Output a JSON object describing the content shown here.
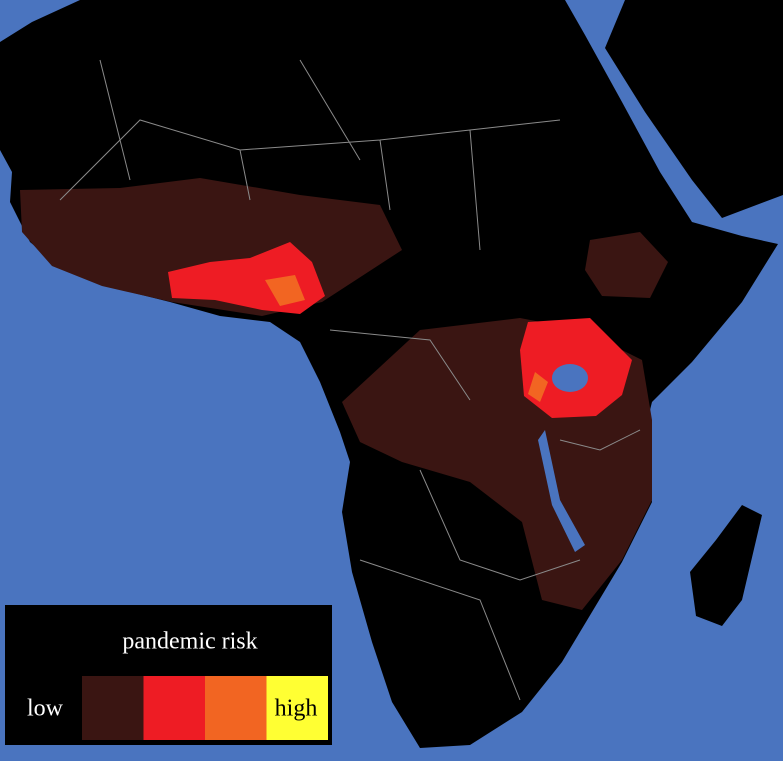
{
  "legend": {
    "title": "pandemic risk",
    "low_label": "low",
    "high_label": "high",
    "colors": [
      "#3a1512",
      "#ee1c24",
      "#f26522",
      "#ffff33"
    ]
  }
}
